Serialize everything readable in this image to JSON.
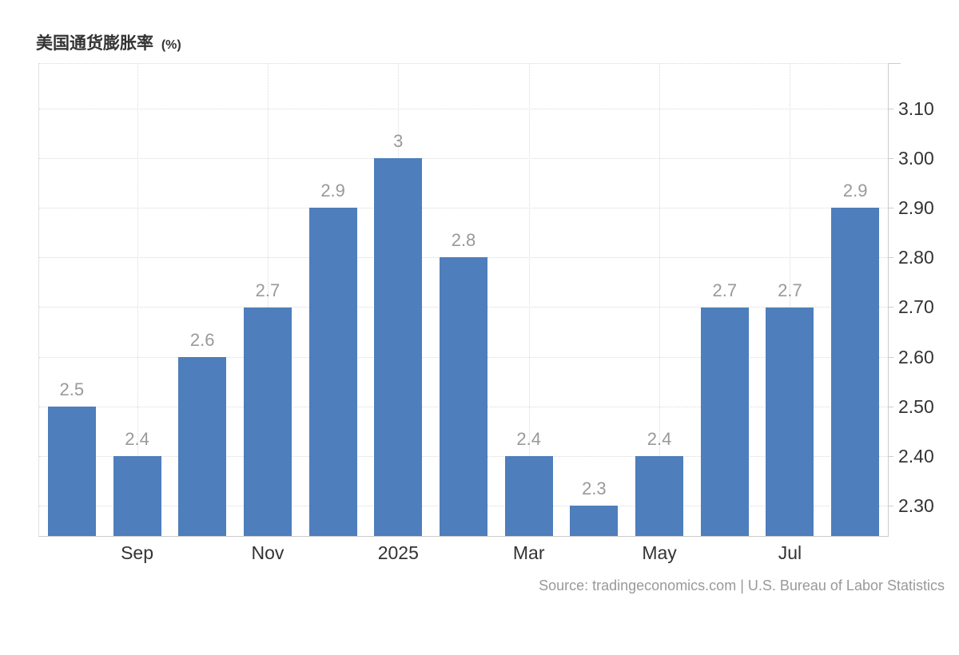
{
  "header": {
    "title": "美国通货膨胀率",
    "unit": "(%)"
  },
  "footer": {
    "source": "Source: tradingeconomics.com | U.S. Bureau of Labor Statistics"
  },
  "colors": {
    "bar": "#4e7ebc",
    "grid": "#d9d9d9",
    "axis": "#cccccc",
    "value_label": "#999999",
    "tick_label": "#333333",
    "title": "#333333",
    "source": "#999999",
    "background": "#ffffff"
  },
  "chart_data": {
    "type": "bar",
    "title": "美国通货膨胀率 (%)",
    "xlabel": "",
    "ylabel": "",
    "values": [
      2.5,
      2.4,
      2.6,
      2.7,
      2.9,
      3.0,
      2.8,
      2.4,
      2.3,
      2.4,
      2.7,
      2.7,
      2.9
    ],
    "bar_labels": [
      "2.5",
      "2.4",
      "2.6",
      "2.7",
      "2.9",
      "3",
      "2.8",
      "2.4",
      "2.3",
      "2.4",
      "2.7",
      "2.7",
      "2.9"
    ],
    "x_ticks": [
      {
        "bar_index": 1,
        "label": "Sep"
      },
      {
        "bar_index": 3,
        "label": "Nov"
      },
      {
        "bar_index": 5,
        "label": "2025"
      },
      {
        "bar_index": 7,
        "label": "Mar"
      },
      {
        "bar_index": 9,
        "label": "May"
      },
      {
        "bar_index": 11,
        "label": "Jul"
      }
    ],
    "y_ticks": [
      {
        "value": 3.1,
        "label": "3.10"
      },
      {
        "value": 3.0,
        "label": "3.00"
      },
      {
        "value": 2.9,
        "label": "2.90"
      },
      {
        "value": 2.8,
        "label": "2.80"
      },
      {
        "value": 2.7,
        "label": "2.70"
      },
      {
        "value": 2.6,
        "label": "2.60"
      },
      {
        "value": 2.5,
        "label": "2.50"
      },
      {
        "value": 2.4,
        "label": "2.40"
      },
      {
        "value": 2.3,
        "label": "2.30"
      }
    ],
    "ylim": [
      2.238,
      3.191
    ],
    "grid": true,
    "legend": "none",
    "y_axis_side": "right"
  }
}
